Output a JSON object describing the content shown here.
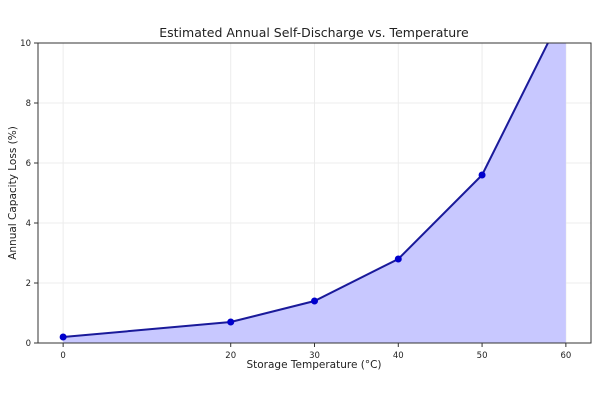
{
  "chart_data": {
    "type": "area",
    "title": "Estimated Annual Self-Discharge vs. Temperature",
    "xlabel": "Storage Temperature (°C)",
    "ylabel": "Annual Capacity Loss (%)",
    "x": [
      0,
      20,
      30,
      40,
      50,
      60
    ],
    "values": [
      0.2,
      0.7,
      1.4,
      2.8,
      5.6,
      11.2
    ],
    "xlim": [
      -3,
      63
    ],
    "ylim": [
      0,
      10
    ],
    "xticks": [
      0,
      20,
      30,
      40,
      50,
      60
    ],
    "yticks": [
      0,
      2,
      4,
      6,
      8,
      10
    ],
    "grid": true,
    "legend": "none",
    "colors": {
      "line": "#1a1a9a",
      "marker": "#0000cc",
      "fill": "#c8c8ff"
    }
  }
}
